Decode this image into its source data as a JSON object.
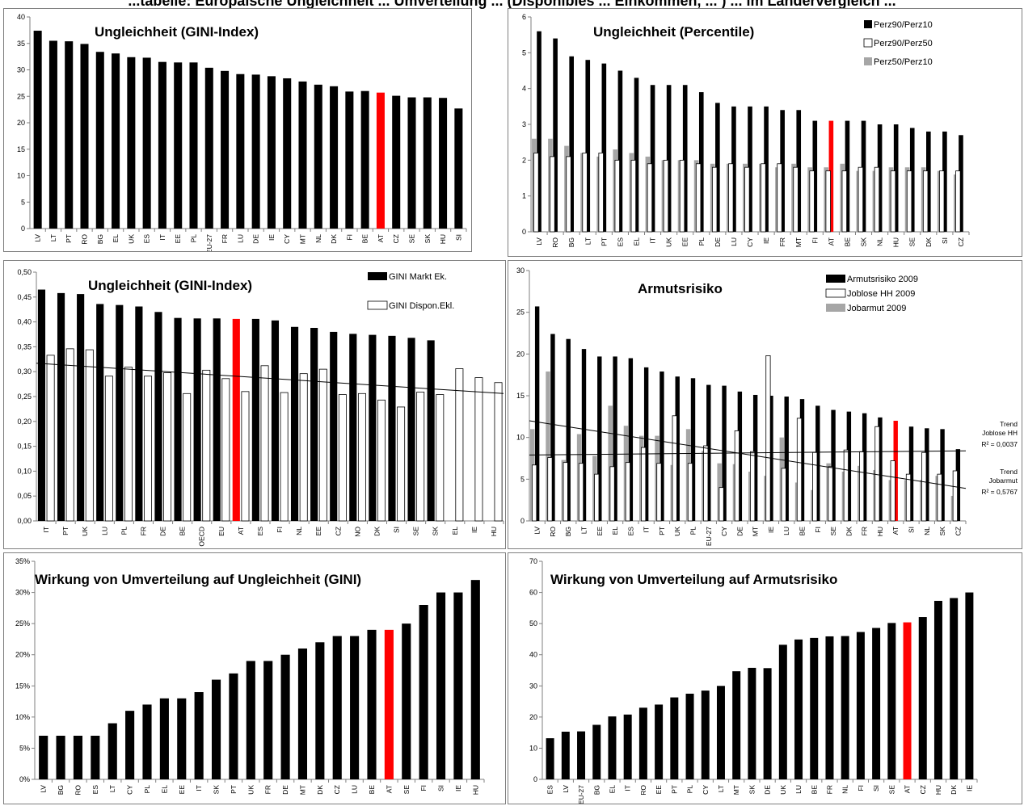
{
  "page": {
    "title": "...tabelle: Europäische Ungleichheit ... Umverteilung ... (Disponibles ... Einkommen, ... ) ... im Ländervergleich ..."
  },
  "colors": {
    "black": "#000000",
    "red": "#ff0000",
    "gray": "#a6a6a6",
    "white": "#ffffff",
    "axis": "#7f7f7f"
  },
  "chart_data": [
    {
      "type": "bar",
      "title": "Ungleichheit (GINI-Index)",
      "ylim": [
        0,
        40
      ],
      "yticks": [
        0,
        5,
        10,
        15,
        20,
        25,
        30,
        35,
        40
      ],
      "ytick_labels": [
        "0",
        "5",
        "10",
        "15",
        "20",
        "25",
        "30",
        "35",
        "40"
      ],
      "highlight": "AT",
      "categories": [
        "LV",
        "LT",
        "PT",
        "RO",
        "BG",
        "EL",
        "UK",
        "ES",
        "IT",
        "EE",
        "PL",
        "EU-27",
        "FR",
        "LU",
        "DE",
        "IE",
        "CY",
        "MT",
        "NL",
        "DK",
        "FI",
        "BE",
        "AT",
        "CZ",
        "SE",
        "SK",
        "HU",
        "SI"
      ],
      "series": [
        {
          "values": [
            37.4,
            35.5,
            35.4,
            34.9,
            33.4,
            33.1,
            32.4,
            32.3,
            31.5,
            31.4,
            31.4,
            30.4,
            29.8,
            29.2,
            29.1,
            28.8,
            28.4,
            27.8,
            27.2,
            26.9,
            25.9,
            26.0,
            25.7,
            25.1,
            24.8,
            24.8,
            24.7,
            22.7
          ]
        }
      ]
    },
    {
      "type": "bar",
      "title": "Ungleichheit (Percentile)",
      "ylim": [
        0,
        6
      ],
      "yticks": [
        0,
        1,
        2,
        3,
        4,
        5,
        6
      ],
      "ytick_labels": [
        "0",
        "1",
        "2",
        "3",
        "4",
        "5",
        "6"
      ],
      "legend_position": "top-right",
      "highlight": "AT",
      "categories": [
        "LV",
        "RO",
        "BG",
        "LT",
        "PT",
        "ES",
        "EL",
        "IT",
        "UK",
        "EE",
        "PL",
        "DE",
        "LU",
        "CY",
        "IE",
        "FR",
        "MT",
        "FI",
        "AT",
        "BE",
        "SK",
        "NL",
        "HU",
        "SE",
        "DK",
        "SI",
        "CZ"
      ],
      "series": [
        {
          "name": "Perz90/Perz10",
          "values": [
            5.6,
            5.4,
            4.9,
            4.8,
            4.7,
            4.5,
            4.3,
            4.1,
            4.1,
            4.1,
            3.9,
            3.6,
            3.5,
            3.5,
            3.5,
            3.4,
            3.4,
            3.1,
            3.1,
            3.1,
            3.1,
            3.0,
            3.0,
            2.9,
            2.8,
            2.8,
            2.7
          ]
        },
        {
          "name": "Perz90/Perz50",
          "values": [
            2.2,
            2.1,
            2.1,
            2.2,
            2.2,
            2.0,
            2.0,
            1.9,
            2.0,
            2.0,
            1.9,
            1.8,
            1.9,
            1.8,
            1.9,
            1.9,
            1.8,
            1.7,
            1.7,
            1.7,
            1.8,
            1.8,
            1.7,
            1.7,
            1.7,
            1.7,
            1.7
          ]
        },
        {
          "name": "Perz50/Perz10",
          "values": [
            2.6,
            2.6,
            2.4,
            2.2,
            2.1,
            2.3,
            2.2,
            2.1,
            2.0,
            2.0,
            2.0,
            1.9,
            1.9,
            1.9,
            1.9,
            1.8,
            1.9,
            1.8,
            1.8,
            1.9,
            1.7,
            1.7,
            1.8,
            1.8,
            1.8,
            1.7,
            1.6
          ]
        }
      ]
    },
    {
      "type": "bar",
      "title": "Ungleichheit (GINI-Index)",
      "ylim": [
        0,
        0.5
      ],
      "yticks": [
        0,
        0.05,
        0.1,
        0.15,
        0.2,
        0.25,
        0.3,
        0.35,
        0.4,
        0.45,
        0.5
      ],
      "ytick_labels": [
        "0,00",
        "0,05",
        "0,10",
        "0,15",
        "0,20",
        "0,25",
        "0,30",
        "0,35",
        "0,40",
        "0,45",
        "0,50"
      ],
      "legend_position": "top-right",
      "highlight": "AT",
      "categories": [
        "IT",
        "PT",
        "UK",
        "LU",
        "PL",
        "FR",
        "DE",
        "BE",
        "OECD",
        "EU",
        "AT",
        "ES",
        "FI",
        "NL",
        "EE",
        "CZ",
        "NO",
        "DK",
        "SI",
        "SE",
        "SK",
        "EL",
        "IE",
        "HU"
      ],
      "series": [
        {
          "name": "GINI Markt Ek.",
          "values": [
            0.465,
            0.458,
            0.456,
            0.436,
            0.434,
            0.431,
            0.42,
            0.408,
            0.407,
            0.407,
            0.406,
            0.406,
            0.403,
            0.39,
            0.388,
            0.38,
            0.376,
            0.374,
            0.372,
            0.368,
            0.363,
            null,
            null,
            null
          ]
        },
        {
          "name": "GINI Dispon.Ekl.",
          "values": [
            0.333,
            0.346,
            0.344,
            0.291,
            0.309,
            0.291,
            0.298,
            0.256,
            0.303,
            0.286,
            0.26,
            0.312,
            0.258,
            0.296,
            0.305,
            0.254,
            0.256,
            0.243,
            0.229,
            0.259,
            0.254,
            0.306,
            0.288,
            0.278
          ]
        }
      ],
      "trendline": {
        "from": 0.317,
        "to": 0.256
      }
    },
    {
      "type": "bar",
      "title": "Armutsrisiko",
      "ylim": [
        0,
        30
      ],
      "yticks": [
        0,
        5,
        10,
        15,
        20,
        25,
        30
      ],
      "ytick_labels": [
        "0",
        "5",
        "10",
        "15",
        "20",
        "25",
        "30"
      ],
      "legend_position": "top-right",
      "highlight": "AT",
      "categories": [
        "LV",
        "RO",
        "BG",
        "LT",
        "EE",
        "EL",
        "ES",
        "IT",
        "PT",
        "UK",
        "PL",
        "EU-27",
        "CY",
        "DE",
        "MT",
        "IE",
        "LU",
        "BE",
        "FI",
        "SE",
        "DK",
        "FR",
        "HU",
        "AT",
        "SI",
        "NL",
        "SK",
        "CZ"
      ],
      "series": [
        {
          "name": "Armutsrisiko 2009",
          "values": [
            25.7,
            22.4,
            21.8,
            20.6,
            19.7,
            19.7,
            19.5,
            18.4,
            17.9,
            17.3,
            17.1,
            16.3,
            16.2,
            15.5,
            15.1,
            15.0,
            14.9,
            14.6,
            13.8,
            13.3,
            13.1,
            12.9,
            12.4,
            12.0,
            11.3,
            11.1,
            11.0,
            8.6
          ]
        },
        {
          "name": "Joblose HH 2009",
          "values": [
            6.7,
            7.6,
            7.0,
            6.9,
            5.6,
            6.5,
            7.0,
            8.8,
            6.9,
            12.6,
            6.9,
            9.0,
            4.0,
            10.8,
            8.3,
            19.8,
            6.3,
            12.3,
            8.2,
            6.5,
            8.5,
            8.3,
            11.3,
            7.2,
            5.6,
            8.2,
            5.6,
            6.0
          ]
        },
        {
          "name": "Jobarmut 2009",
          "values": [
            11.0,
            17.9,
            7.3,
            10.4,
            7.8,
            13.8,
            11.4,
            10.2,
            10.2,
            6.7,
            11.0,
            8.4,
            6.9,
            6.8,
            5.9,
            5.4,
            10.0,
            4.6,
            3.7,
            6.9,
            5.9,
            6.6,
            6.1,
            4.9,
            4.9,
            4.9,
            5.4,
            3.0
          ]
        }
      ],
      "trendlines": [
        {
          "label": "Trend\nJoblose HH",
          "r2": "R² = 0,0037",
          "from": 7.9,
          "to": 8.4
        },
        {
          "label": "Trend\nJobarmut",
          "r2": "R² = 0,5767",
          "from": 12.0,
          "to": 3.9
        }
      ]
    },
    {
      "type": "bar",
      "title": "Wirkung von Umverteilung auf Ungleichheit (GINI)",
      "ylim": [
        0,
        0.35
      ],
      "yticks": [
        0,
        0.05,
        0.1,
        0.15,
        0.2,
        0.25,
        0.3,
        0.35
      ],
      "ytick_labels": [
        "0%",
        "5%",
        "10%",
        "15%",
        "20%",
        "25%",
        "30%",
        "35%"
      ],
      "highlight": "AT",
      "categories": [
        "LV",
        "BG",
        "RO",
        "ES",
        "LT",
        "CY",
        "PL",
        "EL",
        "EE",
        "IT",
        "SK",
        "PT",
        "UK",
        "FR",
        "DE",
        "MT",
        "DK",
        "CZ",
        "LU",
        "BE",
        "AT",
        "SE",
        "FI",
        "SI",
        "IE",
        "HU"
      ],
      "series": [
        {
          "values": [
            0.07,
            0.07,
            0.07,
            0.07,
            0.09,
            0.11,
            0.12,
            0.13,
            0.13,
            0.14,
            0.16,
            0.17,
            0.19,
            0.19,
            0.2,
            0.21,
            0.22,
            0.23,
            0.23,
            0.24,
            0.24,
            0.25,
            0.28,
            0.3,
            0.3,
            0.32
          ]
        }
      ]
    },
    {
      "type": "bar",
      "title": "Wirkung von Umverteilung auf Armutsrisiko",
      "ylim": [
        0,
        70
      ],
      "yticks": [
        0,
        10,
        20,
        30,
        40,
        50,
        60,
        70
      ],
      "ytick_labels": [
        "0",
        "10",
        "20",
        "30",
        "40",
        "50",
        "60",
        "70"
      ],
      "highlight": "AT",
      "categories": [
        "ES",
        "LV",
        "EU-27",
        "BG",
        "EL",
        "IT",
        "RO",
        "EE",
        "PT",
        "PL",
        "CY",
        "LT",
        "MT",
        "SK",
        "DE",
        "UK",
        "LU",
        "BE",
        "FR",
        "NL",
        "FI",
        "SI",
        "SE",
        "AT",
        "CZ",
        "HU",
        "DK",
        "IE"
      ],
      "series": [
        {
          "values": [
            13.2,
            15.3,
            15.4,
            17.5,
            20.2,
            20.8,
            23.0,
            24.0,
            26.3,
            27.5,
            28.5,
            30.0,
            34.7,
            35.8,
            35.7,
            43.2,
            44.9,
            45.4,
            45.9,
            46.0,
            47.3,
            48.6,
            50.2,
            50.4,
            52.1,
            57.3,
            58.2,
            60.0
          ]
        }
      ]
    }
  ]
}
